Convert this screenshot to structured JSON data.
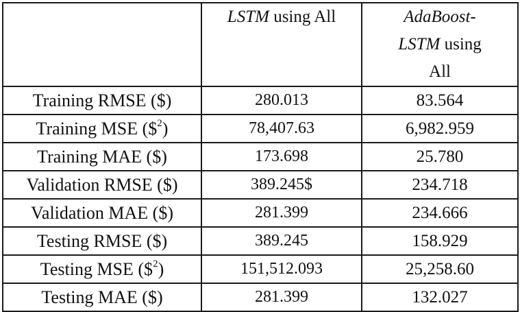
{
  "table": {
    "header": {
      "corner": "",
      "col1_italic": "LSTM",
      "col1_rest": " using All",
      "col2_italic_line1": "AdaBoost-",
      "col2_italic_line2": "LSTM",
      "col2_rest_line2": " using",
      "col2_line3": "All"
    },
    "rows": [
      {
        "metric": "Training RMSE ($)",
        "sup": "",
        "suffix": "",
        "lstm": "280.013",
        "ada": "83.564"
      },
      {
        "metric": "Training MSE ($",
        "sup": "2",
        "suffix": ")",
        "lstm": "78,407.63",
        "ada": "6,982.959"
      },
      {
        "metric": "Training MAE ($)",
        "sup": "",
        "suffix": "",
        "lstm": "173.698",
        "ada": "25.780"
      },
      {
        "metric": "Validation RMSE ($)",
        "sup": "",
        "suffix": "",
        "lstm": "389.245$",
        "ada": "234.718"
      },
      {
        "metric": "Validation MAE ($)",
        "sup": "",
        "suffix": "",
        "lstm": "281.399",
        "ada": "234.666"
      },
      {
        "metric": "Testing RMSE ($)",
        "sup": "",
        "suffix": "",
        "lstm": "389.245",
        "ada": "158.929"
      },
      {
        "metric": "Testing MSE ($",
        "sup": "2",
        "suffix": ")",
        "lstm": "151,512.093",
        "ada": "25,258.60"
      },
      {
        "metric": "Testing MAE ($)",
        "sup": "",
        "suffix": "",
        "lstm": "281.399",
        "ada": "132.027"
      }
    ]
  }
}
